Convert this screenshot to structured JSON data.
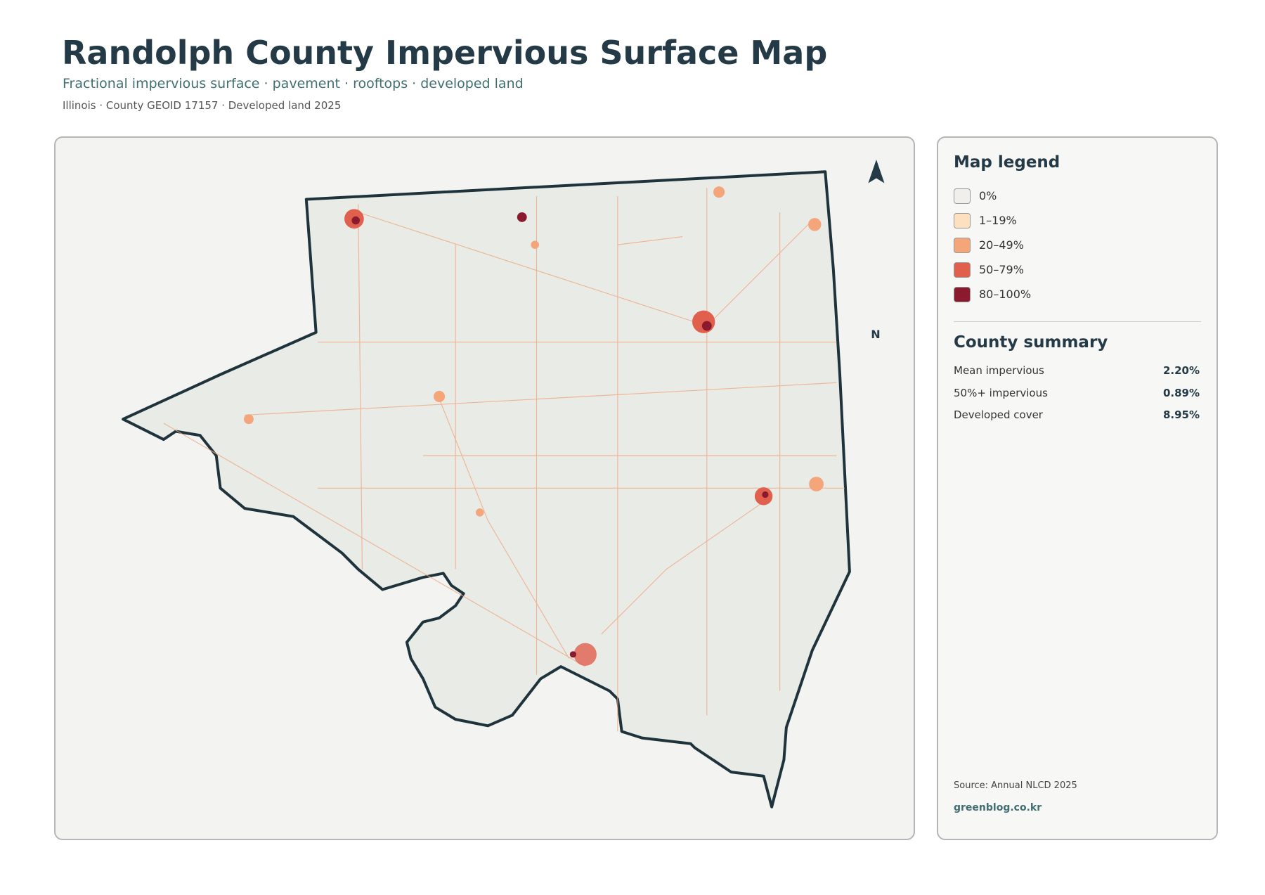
{
  "header": {
    "title": "Randolph County Impervious Surface Map",
    "subtitle": "Fractional impervious surface · pavement · rooftops · developed land",
    "meta": "Illinois · County GEOID 17157 · Developed land 2025"
  },
  "map": {
    "north": "N"
  },
  "legend": {
    "title": "Map legend",
    "items": [
      {
        "label": "0%",
        "color": "#f0efeb"
      },
      {
        "label": "1–19%",
        "color": "#fde0c0"
      },
      {
        "label": "20–49%",
        "color": "#f4a57a"
      },
      {
        "label": "50–79%",
        "color": "#e05f4d"
      },
      {
        "label": "80–100%",
        "color": "#8b1a2e"
      }
    ]
  },
  "summary": {
    "title": "County summary",
    "rows": [
      {
        "label": "Mean impervious",
        "value": "2.20%"
      },
      {
        "label": "50%+ impervious",
        "value": "0.89%"
      },
      {
        "label": "Developed cover",
        "value": "8.95%"
      }
    ]
  },
  "footer": {
    "source": "Source: Annual NLCD 2025",
    "credit": "greenblog.co.kr"
  }
}
